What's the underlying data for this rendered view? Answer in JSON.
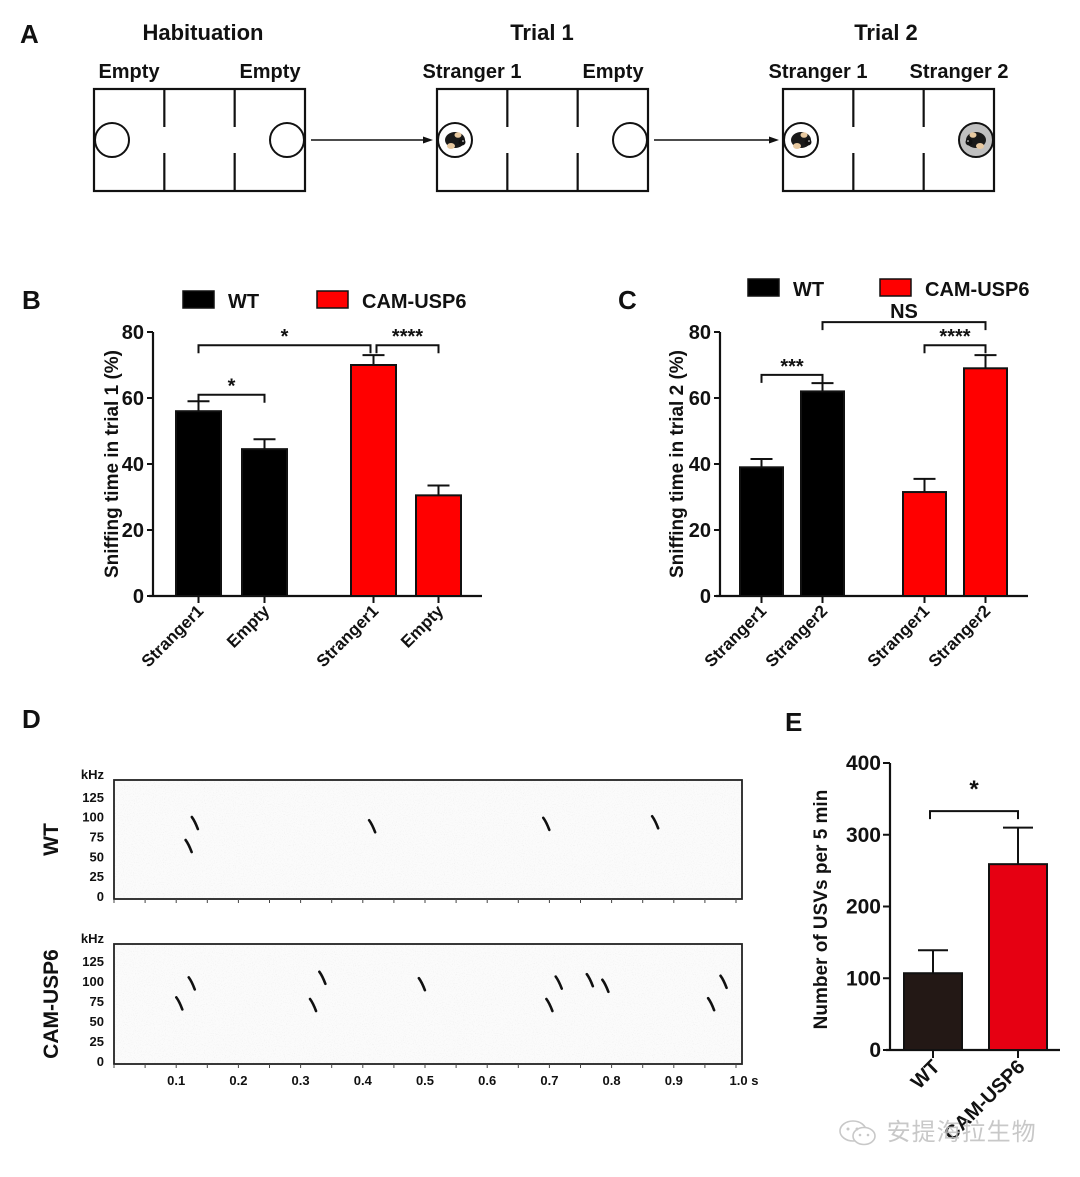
{
  "panel_a": {
    "letter": "A",
    "stages": [
      {
        "title": "Habituation",
        "left_label": "Empty",
        "right_label": "Empty",
        "left_occupant": "empty",
        "right_occupant": "empty"
      },
      {
        "title": "Trial 1",
        "left_label": "Stranger 1",
        "right_label": "Empty",
        "left_occupant": "stranger1",
        "right_occupant": "empty"
      },
      {
        "title": "Trial 2",
        "left_label": "Stranger 1",
        "right_label": "Stranger 2",
        "left_occupant": "stranger1",
        "right_occupant": "stranger2"
      }
    ]
  },
  "colors": {
    "wt": "#000000",
    "cam": "#ff0000",
    "wt_e": "#231815",
    "cam_e": "#e60012",
    "axis": "#111111"
  },
  "chart_data": [
    {
      "id": "B",
      "type": "bar",
      "letter": "B",
      "title": "",
      "legend": [
        {
          "name": "WT",
          "color": "#000000"
        },
        {
          "name": "CAM-USP6",
          "color": "#ff0000"
        }
      ],
      "legend_position": "top",
      "ylabel": "Sniffing time in trial 1 (%)",
      "xlabel": "",
      "ylim": [
        0,
        80
      ],
      "yticks": [
        0,
        20,
        40,
        60,
        80
      ],
      "categories": [
        "Stranger1",
        "Empty",
        "Stranger1",
        "Empty"
      ],
      "groups": [
        "WT",
        "WT",
        "CAM-USP6",
        "CAM-USP6"
      ],
      "values": [
        56,
        44.5,
        70,
        30.5
      ],
      "errors": [
        3,
        3,
        3,
        3
      ],
      "significance": [
        {
          "from": 0,
          "to": 1,
          "label": "*",
          "level": 61
        },
        {
          "from": 0,
          "to": 2,
          "label": "*",
          "level": 76
        },
        {
          "from": 2,
          "to": 3,
          "label": "****",
          "level": 76
        }
      ]
    },
    {
      "id": "C",
      "type": "bar",
      "letter": "C",
      "title": "",
      "legend": [
        {
          "name": "WT",
          "color": "#000000"
        },
        {
          "name": "CAM-USP6",
          "color": "#ff0000"
        }
      ],
      "legend_position": "top",
      "ylabel": "Sniffing time in trial 2 (%)",
      "xlabel": "",
      "ylim": [
        0,
        80
      ],
      "yticks": [
        0,
        20,
        40,
        60,
        80
      ],
      "categories": [
        "Stranger1",
        "Stranger2",
        "Stranger1",
        "Stranger2"
      ],
      "groups": [
        "WT",
        "WT",
        "CAM-USP6",
        "CAM-USP6"
      ],
      "values": [
        39,
        62,
        31.5,
        69
      ],
      "errors": [
        2.5,
        2.5,
        4,
        4
      ],
      "significance": [
        {
          "from": 0,
          "to": 1,
          "label": "***",
          "level": 67
        },
        {
          "from": 2,
          "to": 3,
          "label": "****",
          "level": 76
        },
        {
          "from": 1,
          "to": 3,
          "label": "NS",
          "level": 83
        }
      ]
    },
    {
      "id": "D",
      "type": "scatter",
      "letter": "D",
      "title": "",
      "xlabel": "s",
      "ylabel": "kHz",
      "xlim": [
        0,
        1.0
      ],
      "ylim": [
        0,
        140
      ],
      "xticks": [
        "0.1",
        "0.2",
        "0.3",
        "0.4",
        "0.5",
        "0.6",
        "0.7",
        "0.8",
        "0.9",
        "1.0 s"
      ],
      "yticks": [
        "0",
        "25",
        "50",
        "75",
        "100",
        "125"
      ],
      "y_unit_label": "kHz",
      "panels": [
        {
          "name": "WT",
          "calls": [
            {
              "t": 0.13,
              "f": 92
            },
            {
              "t": 0.12,
              "f": 63
            },
            {
              "t": 0.415,
              "f": 88
            },
            {
              "t": 0.695,
              "f": 91
            },
            {
              "t": 0.87,
              "f": 93
            }
          ]
        },
        {
          "name": "CAM-USP6",
          "calls": [
            {
              "t": 0.125,
              "f": 97
            },
            {
              "t": 0.105,
              "f": 72
            },
            {
              "t": 0.335,
              "f": 104
            },
            {
              "t": 0.32,
              "f": 70
            },
            {
              "t": 0.495,
              "f": 96
            },
            {
              "t": 0.715,
              "f": 98
            },
            {
              "t": 0.7,
              "f": 70
            },
            {
              "t": 0.765,
              "f": 101
            },
            {
              "t": 0.79,
              "f": 94
            },
            {
              "t": 0.98,
              "f": 99
            },
            {
              "t": 0.96,
              "f": 71
            }
          ]
        }
      ]
    },
    {
      "id": "E",
      "type": "bar",
      "letter": "E",
      "title": "",
      "ylabel": "Number of USVs per 5 min",
      "xlabel": "",
      "ylim": [
        0,
        400
      ],
      "yticks": [
        0,
        100,
        200,
        300,
        400
      ],
      "categories": [
        "WT",
        "CAM-USP6"
      ],
      "values": [
        107,
        259
      ],
      "errors": [
        32,
        51
      ],
      "significance": [
        {
          "from": 0,
          "to": 1,
          "label": "*",
          "level": 333
        }
      ]
    }
  ],
  "watermark": {
    "text": "安提海拉生物",
    "icon": "wechat-icon"
  }
}
